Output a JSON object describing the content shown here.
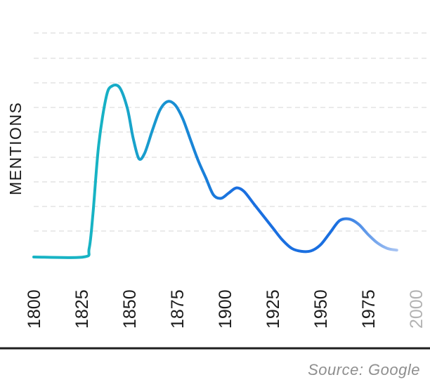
{
  "chart_data": {
    "type": "line",
    "ylabel": "MENTIONS",
    "x_tick_labels": [
      "1800",
      "1825",
      "1850",
      "1875",
      "1900",
      "1925",
      "1950",
      "1975",
      "2000"
    ],
    "xlim": [
      1800,
      2000
    ],
    "ylim": [
      0,
      10
    ],
    "grid": "horizontal-dashed",
    "series": [
      {
        "x": [
          1800,
          1826,
          1829,
          1831,
          1834,
          1838,
          1841,
          1845,
          1849,
          1852,
          1855,
          1858,
          1862,
          1866,
          1870,
          1874,
          1878,
          1882,
          1886,
          1890,
          1894,
          1898,
          1902,
          1906,
          1910,
          1915,
          1920,
          1925,
          1930,
          1935,
          1940,
          1945,
          1950,
          1955,
          1960,
          1965,
          1970,
          1975,
          1980,
          1985,
          1990
        ],
        "y": [
          0,
          0,
          0.5,
          2.5,
          6.5,
          9.3,
          9.9,
          9.8,
          8.6,
          6.9,
          5.7,
          6.0,
          7.3,
          8.5,
          9.0,
          8.8,
          8.0,
          6.8,
          5.6,
          4.6,
          3.6,
          3.4,
          3.7,
          4.0,
          3.8,
          3.1,
          2.4,
          1.7,
          1.0,
          0.5,
          0.33,
          0.35,
          0.7,
          1.4,
          2.1,
          2.2,
          1.9,
          1.3,
          0.8,
          0.5,
          0.4
        ]
      }
    ],
    "colors": {
      "start": "#17b3c4",
      "mid": "#1a6fe0",
      "end": "#b5ccf5"
    },
    "source": "Source: Google"
  }
}
